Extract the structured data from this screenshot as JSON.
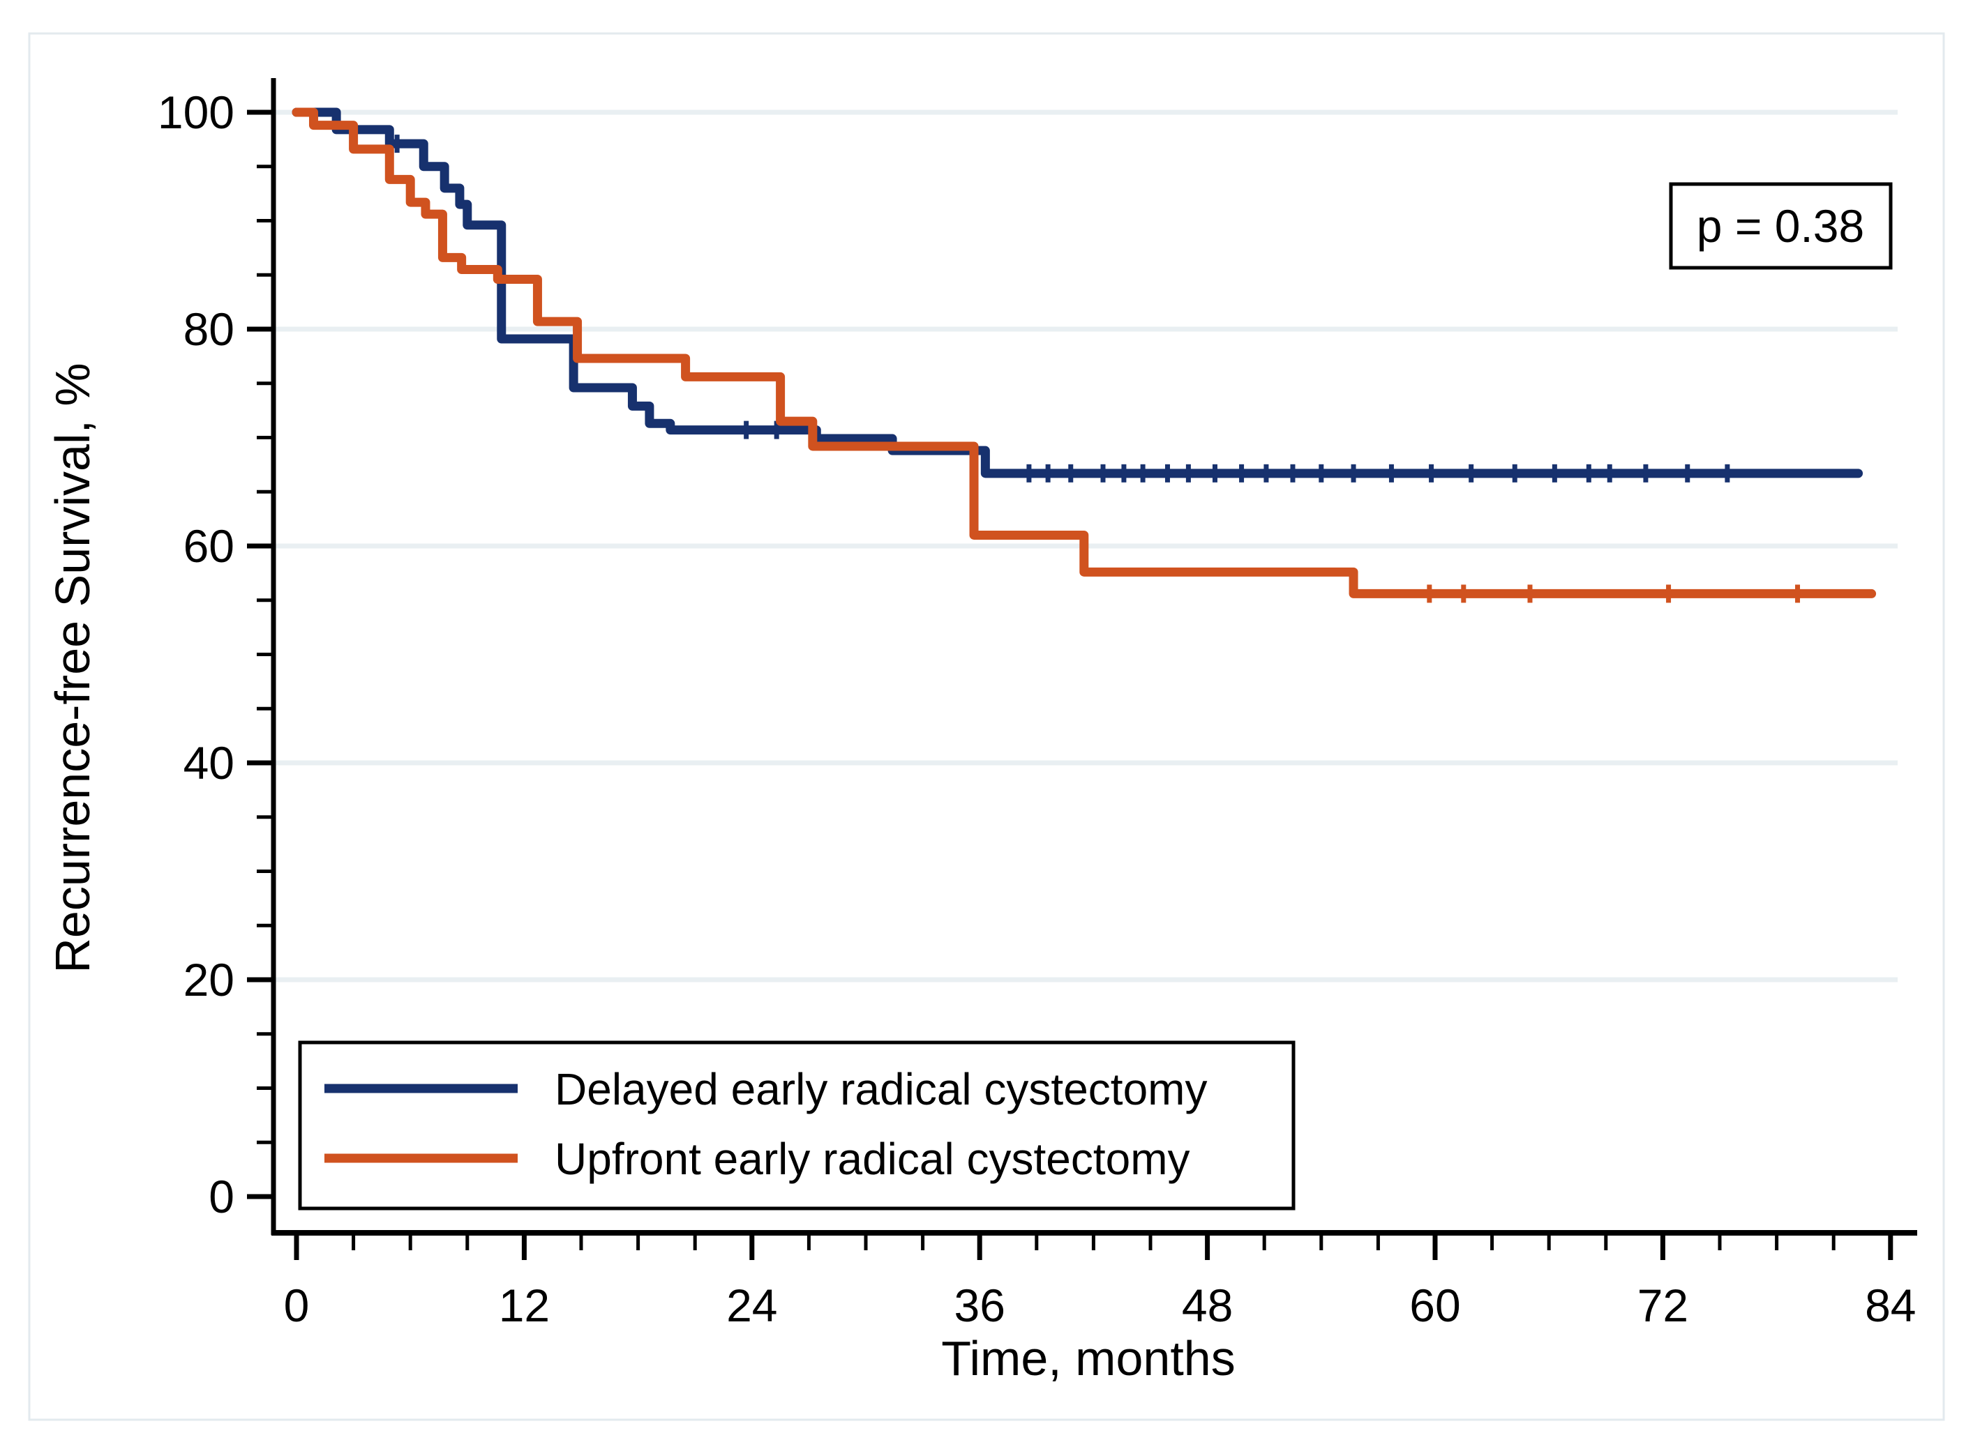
{
  "figure": {
    "background": "#ffffff",
    "frame_color": "#e3eaee",
    "annotation_box": {
      "text": "p = 0.38"
    }
  },
  "chart_data": {
    "type": "line",
    "subtype": "kaplan-meier-step",
    "title": "",
    "xlabel": "Time, months",
    "ylabel": "Recurrence-free Survival, %",
    "xlim": [
      0,
      84
    ],
    "ylim": [
      0,
      100
    ],
    "x_ticks": [
      0,
      12,
      24,
      36,
      48,
      60,
      72,
      84
    ],
    "y_ticks": [
      0,
      20,
      40,
      60,
      80,
      100
    ],
    "x_minor_step": 3,
    "y_minor_step": 5,
    "grid": true,
    "grid_color": "#e9eff2",
    "legend_position": "bottom-left-box",
    "annotation": "p = 0.38",
    "series": [
      {
        "name": "Delayed early radical cystectomy",
        "color": "#17316E",
        "start": [
          0,
          100
        ],
        "steps": [
          [
            2.1,
            98.4
          ],
          [
            4.9,
            97.1
          ],
          [
            6.7,
            95.0
          ],
          [
            7.8,
            93.0
          ],
          [
            8.6,
            91.5
          ],
          [
            9.0,
            89.6
          ],
          [
            10.8,
            79.1
          ],
          [
            14.6,
            74.6
          ],
          [
            17.7,
            72.9
          ],
          [
            18.6,
            71.3
          ],
          [
            19.7,
            70.7
          ],
          [
            27.4,
            69.9
          ],
          [
            31.4,
            68.8
          ],
          [
            36.3,
            66.7
          ]
        ],
        "end_time": 82.3,
        "final_value": 66.7,
        "censor_times": [
          5.3,
          23.7,
          25.3,
          38.6,
          39.6,
          40.8,
          42.5,
          43.6,
          44.6,
          45.9,
          47.0,
          48.4,
          49.8,
          51.1,
          52.5,
          54.0,
          55.7,
          57.7,
          59.8,
          61.9,
          64.2,
          66.3,
          68.1,
          69.2,
          71.1,
          73.3,
          75.4
        ]
      },
      {
        "name": "Upfront early radical cystectomy",
        "color": "#D0521F",
        "start": [
          0,
          100
        ],
        "steps": [
          [
            0.9,
            98.8
          ],
          [
            3.0,
            96.6
          ],
          [
            4.9,
            93.8
          ],
          [
            6.0,
            91.7
          ],
          [
            6.8,
            90.6
          ],
          [
            7.7,
            86.6
          ],
          [
            8.7,
            85.5
          ],
          [
            10.6,
            84.6
          ],
          [
            12.7,
            80.7
          ],
          [
            14.8,
            77.3
          ],
          [
            20.5,
            75.6
          ],
          [
            25.5,
            71.5
          ],
          [
            27.2,
            69.2
          ],
          [
            35.7,
            61.0
          ],
          [
            41.5,
            57.6
          ],
          [
            55.7,
            55.6
          ]
        ],
        "end_time": 83.0,
        "final_value": 55.6,
        "censor_times": [
          59.7,
          61.5,
          65.0,
          72.3,
          79.1
        ]
      }
    ]
  }
}
